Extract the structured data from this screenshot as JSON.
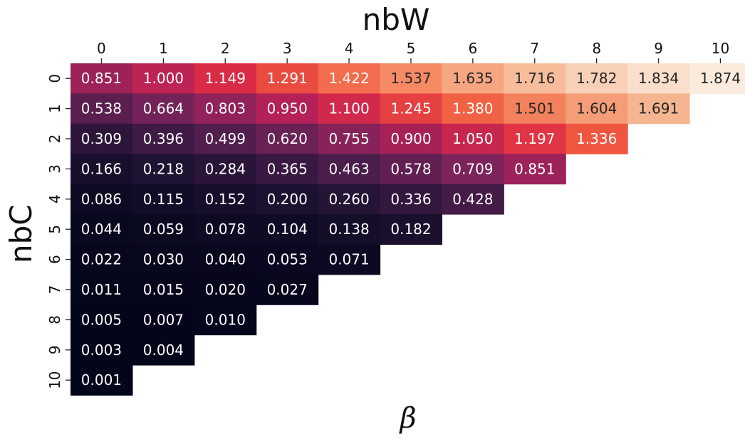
{
  "chart_data": {
    "type": "heatmap",
    "xlabel": "nbW",
    "ylabel": "nbC",
    "bottom_label": "β",
    "x_ticks": [
      "0",
      "1",
      "2",
      "3",
      "4",
      "5",
      "6",
      "7",
      "8",
      "9",
      "10"
    ],
    "y_ticks": [
      "0",
      "1",
      "2",
      "3",
      "4",
      "5",
      "6",
      "7",
      "8",
      "9",
      "10"
    ],
    "values": [
      [
        0.851,
        1.0,
        1.149,
        1.291,
        1.422,
        1.537,
        1.635,
        1.716,
        1.782,
        1.834,
        1.874
      ],
      [
        0.538,
        0.664,
        0.803,
        0.95,
        1.1,
        1.245,
        1.38,
        1.501,
        1.604,
        1.691
      ],
      [
        0.309,
        0.396,
        0.499,
        0.62,
        0.755,
        0.9,
        1.05,
        1.197,
        1.336
      ],
      [
        0.166,
        0.218,
        0.284,
        0.365,
        0.463,
        0.578,
        0.709,
        0.851
      ],
      [
        0.086,
        0.115,
        0.152,
        0.2,
        0.26,
        0.336,
        0.428
      ],
      [
        0.044,
        0.059,
        0.078,
        0.104,
        0.138,
        0.182
      ],
      [
        0.022,
        0.03,
        0.04,
        0.053,
        0.071
      ],
      [
        0.011,
        0.015,
        0.02,
        0.027
      ],
      [
        0.005,
        0.007,
        0.01
      ],
      [
        0.003,
        0.004
      ],
      [
        0.001
      ]
    ],
    "value_format": "3 decimals",
    "colormap": "rocket",
    "colorbar": false
  }
}
